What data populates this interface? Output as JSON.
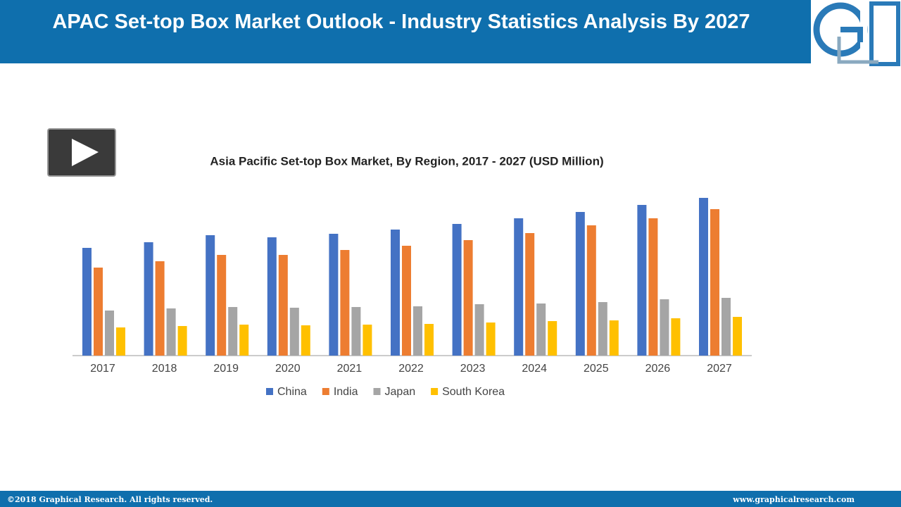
{
  "header": {
    "title": "APAC Set-top Box Market Outlook - Industry Statistics Analysis By 2027"
  },
  "chart_data": {
    "type": "bar",
    "title": "Asia Pacific Set-top Box Market, By Region, 2017 - 2027 (USD Million)",
    "categories": [
      "2017",
      "2018",
      "2019",
      "2020",
      "2021",
      "2022",
      "2023",
      "2024",
      "2025",
      "2026",
      "2027"
    ],
    "series": [
      {
        "name": "China",
        "color": "#4472c4",
        "values": [
          153,
          161,
          171,
          168,
          173,
          179,
          187,
          195,
          204,
          214,
          224
        ]
      },
      {
        "name": "India",
        "color": "#ed7d31",
        "values": [
          125,
          134,
          143,
          143,
          150,
          156,
          164,
          174,
          185,
          195,
          208
        ]
      },
      {
        "name": "Japan",
        "color": "#a5a5a5",
        "values": [
          64,
          67,
          69,
          68,
          69,
          70,
          73,
          74,
          76,
          80,
          82
        ]
      },
      {
        "name": "South Korea",
        "color": "#ffc000",
        "values": [
          40,
          42,
          44,
          43,
          44,
          45,
          47,
          49,
          50,
          53,
          55
        ]
      }
    ]
  },
  "footer": {
    "left": "©2018 Graphical Research. All rights reserved.",
    "right": "www.graphicalresearch.com"
  }
}
